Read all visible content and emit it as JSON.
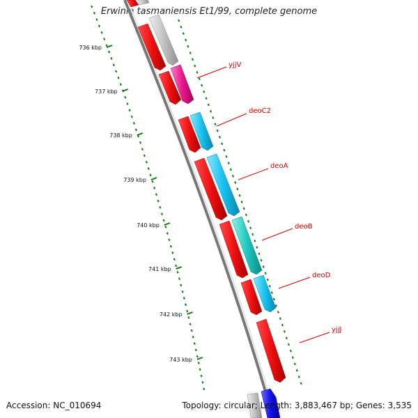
{
  "title": "Erwinia tasmaniensis Et1/99, complete genome",
  "footer": {
    "accession": "Accession: NC_010694",
    "summary": "Topology: circular; Length: 3,883,467 bp; Genes: 3,535"
  },
  "ticks": [
    "736 kbp",
    "737 kbp",
    "738 kbp",
    "739 kbp",
    "740 kbp",
    "741 kbp",
    "742 kbp",
    "743 kbp"
  ],
  "genes": [
    {
      "label": "yjjV",
      "color": "#e81b8f"
    },
    {
      "label": "deoC2",
      "color": "#1ec4ee"
    },
    {
      "label": "deoA",
      "color": "#1ec4ee"
    },
    {
      "label": "deoB",
      "color": "#21c8c0"
    },
    {
      "label": "deoD",
      "color": "#1ec4ee"
    },
    {
      "label": "yjjJ",
      "color": "#e81b1b"
    }
  ],
  "colors": {
    "cds": "#ee1111",
    "unclassified": "#bbbbbb",
    "backbone": "#888888",
    "ticks": "#117711",
    "labels": "#cc0000"
  }
}
